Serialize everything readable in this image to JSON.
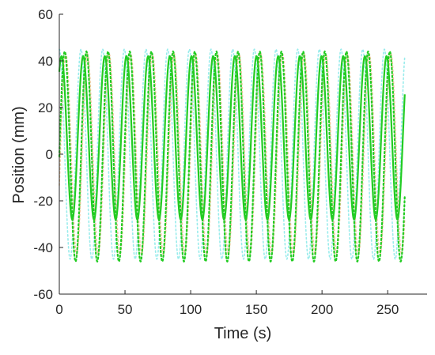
{
  "chart_data": {
    "type": "line",
    "title": "",
    "xlabel": "Time (s)",
    "ylabel": "Position (mm)",
    "xlim": [
      0,
      280
    ],
    "ylim": [
      -60,
      60
    ],
    "x_ticks": [
      0,
      50,
      100,
      150,
      200,
      250
    ],
    "y_ticks": [
      -60,
      -40,
      -20,
      0,
      20,
      40,
      60
    ],
    "grid": false,
    "legend": "none",
    "x_range": [
      0,
      263
    ],
    "series": [
      {
        "color": "#55e0e0",
        "style": "dotted",
        "description": "faint reference",
        "period": 16.5,
        "center": 0,
        "amplitude": 45,
        "phase": 0.0
      },
      {
        "color": "#e8a45a",
        "style": "dotted",
        "description": "faint reference",
        "period": 16.5,
        "center": 0,
        "amplitude": 43,
        "phase": 0.3
      },
      {
        "color": "#22cc22",
        "style": "dotted",
        "period": 16.5,
        "center": -1,
        "amplitude": 45,
        "phase": 0.25
      },
      {
        "color": "#22cc22",
        "style": "solid",
        "period": 16.5,
        "center": 7,
        "amplitude": 35,
        "phase": 0.1
      }
    ]
  }
}
